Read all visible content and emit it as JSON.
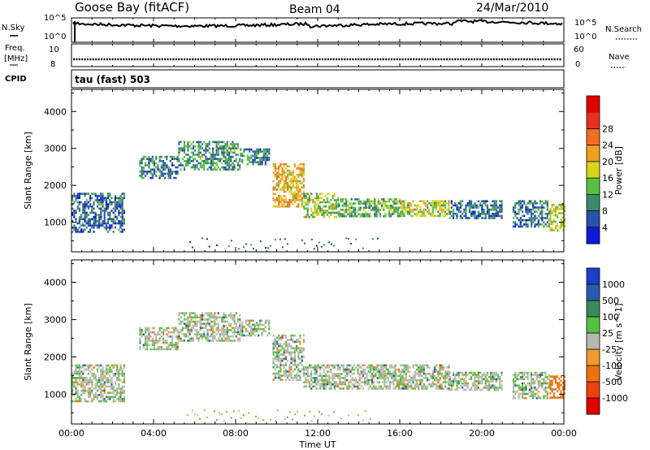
{
  "header": {
    "station": "Goose Bay (fitACF)",
    "beam": "Beam 04",
    "date": "24/Mar/2010"
  },
  "noise_panel": {
    "left_label": "N.Sky",
    "right_label": "N.Search",
    "ticks_left": [
      "10^5",
      "10^0"
    ],
    "ticks_right": [
      "10^5",
      "10^0"
    ]
  },
  "freq_panel": {
    "left_label_1": "Freq.",
    "left_label_2": "[MHz]",
    "right_label": "Nave",
    "ticks_left": [
      "10",
      "8"
    ],
    "ticks_right": [
      "60",
      "0"
    ]
  },
  "cpid_label": "CPID",
  "mode_text": "tau (fast) 503",
  "axes": {
    "ylabel": "Slant Range [km]",
    "xlabel": "Time UT",
    "y_ticks": [
      "1000",
      "2000",
      "3000",
      "4000"
    ],
    "x_ticks": [
      "00:00",
      "04:00",
      "08:00",
      "12:00",
      "16:00",
      "20:00",
      "00:00"
    ]
  },
  "colors": {
    "power": [
      "#1018d8",
      "#2a52a8",
      "#3d8a6a",
      "#58c040",
      "#d6d61a",
      "#f0a020",
      "#f07020",
      "#e83020",
      "#e00000"
    ],
    "velocity": [
      "#1a3fc8",
      "#2a5ab0",
      "#3a8a5a",
      "#58c040",
      "#b8b8b0",
      "#f09a30",
      "#f07010",
      "#f04010",
      "#e00000"
    ]
  },
  "chart_data": [
    {
      "type": "heatmap",
      "quantity": "Power",
      "colorbar_label": "Power [dB]",
      "colorbar_ticks": [
        "4",
        "8",
        "12",
        "16",
        "20",
        "24",
        "28"
      ],
      "xlim": [
        0,
        24
      ],
      "ylim": [
        200,
        4600
      ],
      "x_unit": "hours UT",
      "y_unit": "km",
      "regions": [
        {
          "t0": 0.0,
          "t1": 2.6,
          "r0": 750,
          "r1": 1800,
          "level": 8
        },
        {
          "t0": 3.3,
          "t1": 5.2,
          "r0": 2200,
          "r1": 2800,
          "level": 10
        },
        {
          "t0": 5.2,
          "t1": 8.2,
          "r0": 2450,
          "r1": 3200,
          "level": 11
        },
        {
          "t0": 8.2,
          "t1": 9.6,
          "r0": 2550,
          "r1": 3000,
          "level": 10
        },
        {
          "t0": 9.8,
          "t1": 11.3,
          "r0": 1400,
          "r1": 2600,
          "level": 20
        },
        {
          "t0": 11.3,
          "t1": 13.0,
          "r0": 1150,
          "r1": 1800,
          "level": 15
        },
        {
          "t0": 13.0,
          "t1": 16.0,
          "r0": 1150,
          "r1": 1650,
          "level": 12
        },
        {
          "t0": 16.0,
          "t1": 18.4,
          "r0": 1150,
          "r1": 1600,
          "level": 16
        },
        {
          "t0": 18.4,
          "t1": 21.0,
          "r0": 1100,
          "r1": 1600,
          "level": 9
        },
        {
          "t0": 21.5,
          "t1": 23.3,
          "r0": 900,
          "r1": 1600,
          "level": 9
        },
        {
          "t0": 23.3,
          "t1": 24.0,
          "r0": 800,
          "r1": 1500,
          "level": 17
        }
      ]
    },
    {
      "type": "heatmap",
      "quantity": "Velocity",
      "colorbar_label": "Velocity [m s^-1]",
      "colorbar_ticks": [
        "1000",
        "500",
        "100",
        "25",
        "-25",
        "-100",
        "-500",
        "-1000"
      ],
      "xlim": [
        0,
        24
      ],
      "ylim": [
        200,
        4600
      ],
      "x_unit": "hours UT",
      "y_unit": "km",
      "regions": [
        {
          "t0": 0.0,
          "t1": 2.6,
          "r0": 800,
          "r1": 1800,
          "level": 0
        },
        {
          "t0": 3.3,
          "t1": 5.2,
          "r0": 2200,
          "r1": 2800,
          "level": 0
        },
        {
          "t0": 5.2,
          "t1": 8.2,
          "r0": 2450,
          "r1": 3200,
          "level": 0
        },
        {
          "t0": 8.2,
          "t1": 9.6,
          "r0": 2550,
          "r1": 3000,
          "level": 0
        },
        {
          "t0": 9.8,
          "t1": 11.3,
          "r0": 1400,
          "r1": 2600,
          "level": 0
        },
        {
          "t0": 11.3,
          "t1": 18.4,
          "r0": 1150,
          "r1": 1800,
          "level": 0
        },
        {
          "t0": 18.4,
          "t1": 21.0,
          "r0": 1100,
          "r1": 1600,
          "level": 0
        },
        {
          "t0": 21.5,
          "t1": 23.3,
          "r0": 900,
          "r1": 1600,
          "level": 0
        },
        {
          "t0": 23.3,
          "t1": 24.0,
          "r0": 900,
          "r1": 1500,
          "level": -300
        }
      ]
    }
  ]
}
